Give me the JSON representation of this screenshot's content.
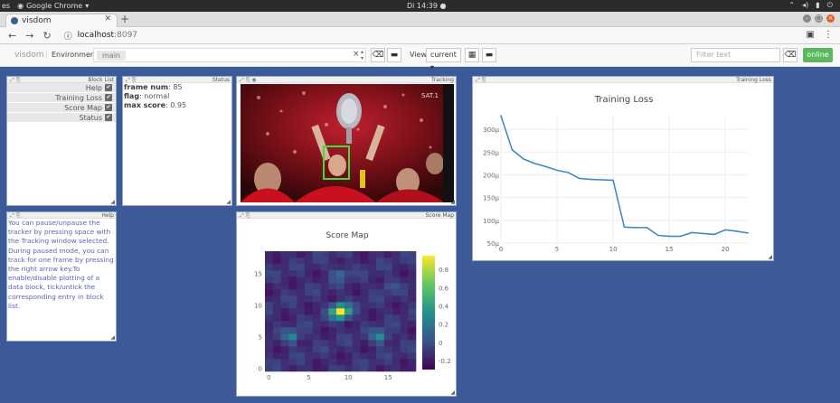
{
  "os": {
    "activities": "es",
    "app_name": "Google Chrome",
    "clock": "Di 14:39 ●"
  },
  "browser": {
    "tab_title": "visdom",
    "url_host": "localhost",
    "url_port": ":8097"
  },
  "visdom": {
    "brand": "visdom",
    "environment_label": "Environment",
    "env_chip": "main",
    "view_label": "View",
    "view_value": "current",
    "filter_placeholder": "Filter text",
    "online_label": "online"
  },
  "windows": {
    "block_list": {
      "title": "Block List",
      "items": [
        {
          "label": "Help"
        },
        {
          "label": "Training Loss"
        },
        {
          "label": "Score Map"
        },
        {
          "label": "Status"
        }
      ]
    },
    "status": {
      "title": "Status",
      "frame_num_key": "frame num",
      "frame_num_val": ": 85",
      "flag_key": "flag",
      "flag_val": ": normal",
      "max_score_key": "max score",
      "max_score_val": ": 0.95"
    },
    "tracking": {
      "title": "Tracking",
      "watermark": "SAT.1"
    },
    "help": {
      "title": "Help",
      "text": "You can pause/unpause the tracker by pressing space with the Tracking window selected. During paused mode, you can track for one frame by pressing the right arrow key.To enable/disable plotting of a data block, tick/untick the corresponding entry in block list."
    },
    "score_map": {
      "title": "Score Map"
    },
    "training_loss": {
      "title": "Training Loss"
    }
  },
  "chart_data": [
    {
      "type": "line",
      "title": "Training Loss",
      "x": [
        0,
        1,
        2,
        3,
        4,
        5,
        6,
        7,
        8,
        9,
        10,
        11,
        12,
        13,
        14,
        15,
        16,
        17,
        18,
        19,
        20,
        21,
        22
      ],
      "series": [
        {
          "values": [
            330,
            255,
            235,
            225,
            218,
            210,
            205,
            192,
            190,
            189,
            188,
            85,
            84,
            84,
            67,
            65,
            65,
            73,
            71,
            69,
            79,
            76,
            72
          ]
        }
      ],
      "xticks": [
        0,
        5,
        10,
        15,
        20
      ],
      "yticks": [
        "50μ",
        "100μ",
        "150μ",
        "200μ",
        "250μ",
        "300μ"
      ],
      "ylim": [
        50,
        330
      ],
      "xlim": [
        0,
        22
      ],
      "line_color": "#3b84c4"
    },
    {
      "type": "heatmap",
      "title": "Score Map",
      "xticks": [
        0,
        5,
        10,
        15
      ],
      "yticks": [
        0,
        5,
        10,
        15
      ],
      "colorbar_ticks": [
        "0.8",
        "0.6",
        "0.4",
        "0.2",
        "0",
        "-0.2"
      ],
      "colorbar_range": [
        -0.3,
        0.95
      ],
      "peaks": [
        {
          "x": 9,
          "y": 9,
          "v": 0.95
        },
        {
          "x": 3,
          "y": 5,
          "v": 0.25
        },
        {
          "x": 14,
          "y": 5,
          "v": 0.3
        },
        {
          "x": 9,
          "y": 15,
          "v": 0.12
        },
        {
          "x": 15,
          "y": 13,
          "v": 0.0
        }
      ],
      "size": 19
    }
  ]
}
